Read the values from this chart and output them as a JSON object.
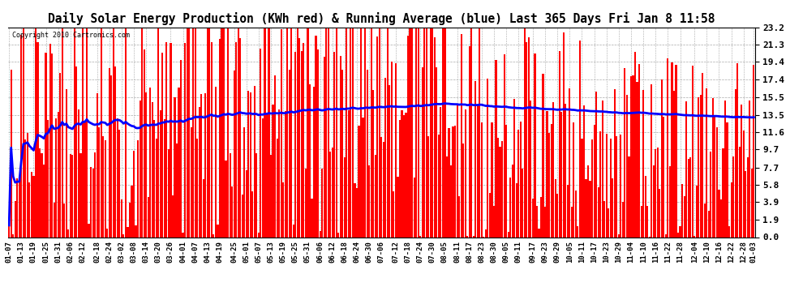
{
  "title": "Daily Solar Energy Production (KWh red) & Running Average (blue) Last 365 Days Fri Jan 8 11:58",
  "copyright": "Copyright 2010 Cartronics.com",
  "yticks": [
    0.0,
    1.9,
    3.9,
    5.8,
    7.7,
    9.7,
    11.6,
    13.5,
    15.5,
    17.4,
    19.4,
    21.3,
    23.2
  ],
  "ymax": 23.2,
  "ymin": 0.0,
  "bar_color": "#ff0000",
  "avg_color": "#0000ff",
  "bg_color": "#ffffff",
  "grid_color": "#aaaaaa",
  "title_fontsize": 10.5,
  "avg_linewidth": 2.0,
  "x_labels": [
    "01-07",
    "01-13",
    "01-19",
    "01-25",
    "01-31",
    "02-06",
    "02-12",
    "02-18",
    "02-24",
    "03-02",
    "03-08",
    "03-14",
    "03-20",
    "03-26",
    "04-01",
    "04-07",
    "04-13",
    "04-19",
    "04-25",
    "05-01",
    "05-07",
    "05-13",
    "05-19",
    "05-25",
    "05-31",
    "06-06",
    "06-12",
    "06-18",
    "06-24",
    "06-30",
    "07-06",
    "07-12",
    "07-18",
    "07-24",
    "07-30",
    "08-05",
    "08-11",
    "08-17",
    "08-23",
    "08-30",
    "09-05",
    "09-11",
    "09-17",
    "09-23",
    "09-29",
    "10-05",
    "10-11",
    "10-17",
    "10-23",
    "10-29",
    "11-04",
    "11-10",
    "11-16",
    "11-22",
    "11-28",
    "12-04",
    "12-10",
    "12-16",
    "12-22",
    "12-28",
    "01-03"
  ]
}
